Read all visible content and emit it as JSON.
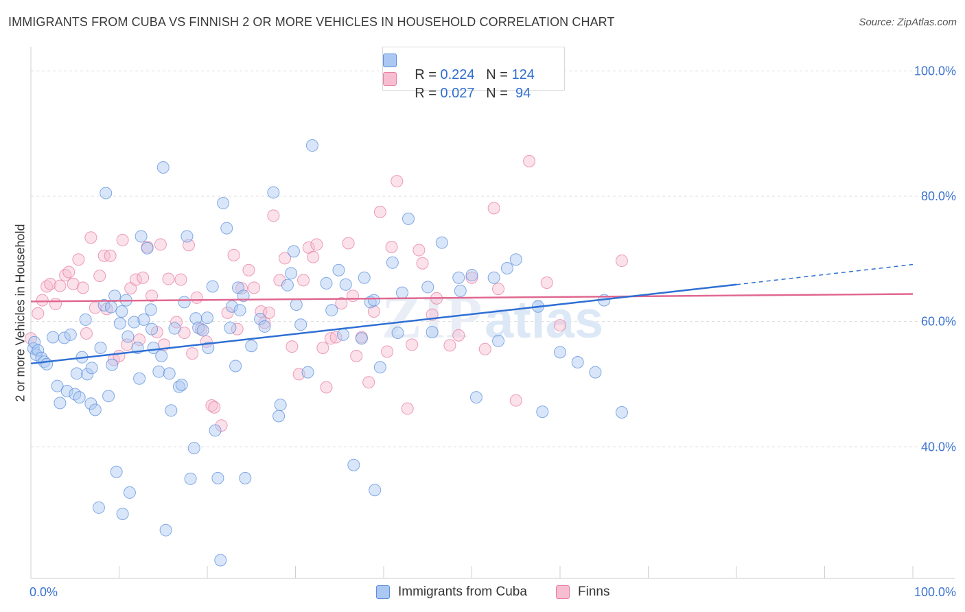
{
  "header": {
    "title": "IMMIGRANTS FROM CUBA VS FINNISH 2 OR MORE VEHICLES IN HOUSEHOLD CORRELATION CHART",
    "source": "Source: ZipAtlas.com"
  },
  "legend": {
    "rows": [
      {
        "r_label": "R = ",
        "r_value": "0.224",
        "n_label": "N = ",
        "n_value": "124",
        "color": "#aac8f2"
      },
      {
        "r_label": "R = ",
        "r_value": "0.027",
        "n_label": "N = ",
        "n_value": " 94",
        "color": "#f7bdd0"
      }
    ]
  },
  "bottom_legend": [
    {
      "label": "Immigrants from Cuba",
      "color": "#aac8f2"
    },
    {
      "label": "Finns",
      "color": "#f7bdd0"
    }
  ],
  "watermark": {
    "zip": "ZIP",
    "atlas": "atlas"
  },
  "chart_data": {
    "type": "scatter",
    "title": "IMMIGRANTS FROM CUBA VS FINNISH 2 OR MORE VEHICLES IN HOUSEHOLD CORRELATION CHART",
    "xlabel": "",
    "ylabel": "2 or more Vehicles in Household",
    "xlim": [
      0,
      100
    ],
    "ylim": [
      19,
      103
    ],
    "x_tick_labels": [
      "0.0%",
      "100.0%"
    ],
    "y_ticks": [
      {
        "value": 100,
        "label": "100.0%"
      },
      {
        "value": 80,
        "label": "80.0%"
      },
      {
        "value": 60,
        "label": "60.0%"
      },
      {
        "value": 40,
        "label": "40.0%"
      }
    ],
    "grid": "horizontal dashed",
    "colors": {
      "cuba": "#5b8fdc",
      "finns": "#e77ea0",
      "cuba_line": "#2e6fd3",
      "finns_line": "#e06790",
      "tick_label": "#3b73d0"
    },
    "series": [
      {
        "name": "Immigrants from Cuba",
        "r": 0.224,
        "n": 124,
        "trend": {
          "x": [
            0,
            80
          ],
          "y": [
            53.3,
            65.9
          ],
          "dashed_extension": {
            "x": [
              80,
              100
            ],
            "y": [
              65.9,
              69.1
            ]
          }
        },
        "points": [
          [
            0.3,
            55.7
          ],
          [
            0.4,
            56.7
          ],
          [
            0.6,
            54.7
          ],
          [
            0.8,
            55.4
          ],
          [
            1.2,
            54.2
          ],
          [
            1.5,
            53.6
          ],
          [
            1.8,
            53.2
          ],
          [
            2.5,
            57.5
          ],
          [
            3.0,
            49.7
          ],
          [
            3.3,
            47.0
          ],
          [
            3.8,
            57.4
          ],
          [
            4.1,
            48.9
          ],
          [
            4.5,
            57.9
          ],
          [
            5.0,
            48.4
          ],
          [
            5.5,
            47.9
          ],
          [
            5.2,
            51.7
          ],
          [
            5.8,
            54.3
          ],
          [
            6.2,
            60.3
          ],
          [
            6.4,
            51.6
          ],
          [
            6.8,
            46.9
          ],
          [
            6.9,
            52.6
          ],
          [
            7.3,
            45.9
          ],
          [
            7.7,
            30.3
          ],
          [
            7.9,
            55.8
          ],
          [
            8.3,
            62.6
          ],
          [
            8.5,
            80.5
          ],
          [
            8.8,
            48.1
          ],
          [
            9.1,
            62.3
          ],
          [
            9.2,
            53.1
          ],
          [
            9.5,
            64.1
          ],
          [
            9.7,
            36.0
          ],
          [
            10.1,
            59.7
          ],
          [
            10.3,
            61.6
          ],
          [
            10.4,
            29.3
          ],
          [
            10.8,
            63.4
          ],
          [
            11.0,
            57.6
          ],
          [
            11.2,
            32.7
          ],
          [
            11.7,
            59.9
          ],
          [
            12.1,
            55.8
          ],
          [
            12.3,
            50.9
          ],
          [
            12.5,
            73.6
          ],
          [
            12.8,
            60.3
          ],
          [
            13.2,
            71.7
          ],
          [
            13.6,
            61.9
          ],
          [
            13.9,
            55.8
          ],
          [
            13.7,
            58.8
          ],
          [
            14.5,
            52.0
          ],
          [
            14.8,
            54.5
          ],
          [
            15.0,
            84.6
          ],
          [
            15.3,
            26.7
          ],
          [
            15.7,
            51.7
          ],
          [
            15.9,
            45.8
          ],
          [
            16.3,
            58.9
          ],
          [
            16.8,
            49.6
          ],
          [
            17.1,
            49.9
          ],
          [
            17.4,
            63.1
          ],
          [
            17.7,
            73.6
          ],
          [
            18.1,
            34.9
          ],
          [
            18.5,
            39.8
          ],
          [
            18.7,
            60.5
          ],
          [
            19.0,
            59.0
          ],
          [
            19.5,
            58.6
          ],
          [
            20.0,
            60.6
          ],
          [
            20.1,
            55.8
          ],
          [
            20.6,
            65.6
          ],
          [
            20.9,
            42.6
          ],
          [
            21.2,
            35.0
          ],
          [
            21.5,
            21.9
          ],
          [
            21.8,
            78.9
          ],
          [
            22.2,
            74.9
          ],
          [
            22.6,
            59.0
          ],
          [
            22.8,
            62.4
          ],
          [
            23.2,
            52.9
          ],
          [
            23.5,
            65.4
          ],
          [
            23.7,
            61.8
          ],
          [
            24.1,
            64.1
          ],
          [
            24.3,
            35.0
          ],
          [
            25.0,
            56.1
          ],
          [
            26.0,
            60.4
          ],
          [
            26.5,
            59.2
          ],
          [
            27.5,
            80.6
          ],
          [
            28.1,
            44.9
          ],
          [
            28.3,
            46.7
          ],
          [
            29.1,
            65.8
          ],
          [
            29.5,
            67.7
          ],
          [
            29.8,
            71.2
          ],
          [
            30.1,
            62.7
          ],
          [
            30.6,
            59.5
          ],
          [
            31.4,
            51.9
          ],
          [
            31.9,
            88.1
          ],
          [
            33.5,
            66.1
          ],
          [
            34.1,
            61.8
          ],
          [
            34.9,
            68.2
          ],
          [
            35.4,
            57.9
          ],
          [
            35.7,
            65.9
          ],
          [
            36.6,
            37.1
          ],
          [
            37.5,
            57.3
          ],
          [
            37.8,
            67.0
          ],
          [
            38.5,
            63.1
          ],
          [
            38.9,
            63.4
          ],
          [
            39.0,
            33.1
          ],
          [
            39.6,
            52.7
          ],
          [
            41.0,
            69.4
          ],
          [
            41.6,
            58.2
          ],
          [
            42.1,
            64.6
          ],
          [
            42.8,
            76.4
          ],
          [
            45.0,
            65.5
          ],
          [
            45.5,
            58.3
          ],
          [
            46.6,
            72.6
          ],
          [
            48.5,
            67.0
          ],
          [
            48.7,
            64.9
          ],
          [
            50.0,
            67.4
          ],
          [
            50.5,
            47.9
          ],
          [
            52.5,
            67.0
          ],
          [
            53.0,
            56.9
          ],
          [
            54.0,
            68.5
          ],
          [
            55.0,
            69.9
          ],
          [
            57.5,
            62.4
          ],
          [
            58.0,
            45.6
          ],
          [
            60.0,
            55.1
          ],
          [
            64.0,
            51.9
          ],
          [
            65.0,
            63.4
          ],
          [
            67.0,
            45.5
          ],
          [
            62.0,
            53.5
          ]
        ]
      },
      {
        "name": "Finns",
        "r": 0.027,
        "n": 94,
        "trend": {
          "x": [
            0,
            100
          ],
          "y": [
            63.2,
            64.4
          ]
        },
        "points": [
          [
            0.0,
            57.3
          ],
          [
            0.8,
            61.3
          ],
          [
            1.3,
            63.4
          ],
          [
            1.8,
            65.6
          ],
          [
            2.2,
            66.0
          ],
          [
            2.8,
            62.8
          ],
          [
            3.3,
            65.7
          ],
          [
            3.9,
            67.4
          ],
          [
            4.3,
            67.9
          ],
          [
            4.8,
            66.0
          ],
          [
            5.4,
            69.9
          ],
          [
            5.9,
            65.4
          ],
          [
            6.3,
            58.1
          ],
          [
            6.8,
            73.4
          ],
          [
            7.3,
            62.2
          ],
          [
            7.8,
            67.3
          ],
          [
            8.3,
            70.5
          ],
          [
            8.6,
            62.0
          ],
          [
            9.0,
            70.5
          ],
          [
            9.4,
            53.9
          ],
          [
            10.0,
            54.5
          ],
          [
            10.4,
            73.0
          ],
          [
            10.9,
            56.3
          ],
          [
            11.3,
            65.3
          ],
          [
            11.9,
            66.7
          ],
          [
            12.3,
            57.1
          ],
          [
            12.7,
            67.0
          ],
          [
            13.2,
            71.9
          ],
          [
            13.7,
            64.1
          ],
          [
            14.3,
            58.3
          ],
          [
            14.7,
            72.3
          ],
          [
            15.1,
            56.3
          ],
          [
            15.6,
            66.8
          ],
          [
            16.5,
            59.9
          ],
          [
            17.0,
            66.7
          ],
          [
            17.4,
            58.2
          ],
          [
            17.9,
            72.2
          ],
          [
            18.3,
            54.9
          ],
          [
            18.8,
            63.8
          ],
          [
            19.3,
            58.8
          ],
          [
            19.9,
            56.8
          ],
          [
            20.5,
            46.6
          ],
          [
            20.8,
            46.3
          ],
          [
            21.6,
            43.4
          ],
          [
            22.3,
            61.4
          ],
          [
            23.0,
            70.6
          ],
          [
            23.4,
            58.8
          ],
          [
            23.9,
            65.3
          ],
          [
            24.7,
            68.2
          ],
          [
            25.3,
            65.4
          ],
          [
            26.1,
            61.6
          ],
          [
            26.5,
            59.8
          ],
          [
            27.0,
            61.4
          ],
          [
            27.5,
            76.9
          ],
          [
            28.2,
            66.6
          ],
          [
            28.8,
            70.1
          ],
          [
            29.6,
            56.0
          ],
          [
            30.4,
            51.6
          ],
          [
            30.9,
            66.6
          ],
          [
            31.5,
            71.8
          ],
          [
            32.0,
            70.3
          ],
          [
            32.4,
            72.3
          ],
          [
            33.1,
            55.8
          ],
          [
            33.5,
            49.5
          ],
          [
            34.0,
            57.3
          ],
          [
            34.6,
            57.5
          ],
          [
            35.2,
            62.9
          ],
          [
            36.0,
            72.5
          ],
          [
            36.5,
            64.1
          ],
          [
            36.9,
            54.5
          ],
          [
            37.5,
            57.5
          ],
          [
            38.3,
            50.3
          ],
          [
            38.9,
            61.6
          ],
          [
            39.6,
            77.5
          ],
          [
            40.4,
            55.2
          ],
          [
            40.9,
            71.9
          ],
          [
            41.5,
            82.4
          ],
          [
            42.7,
            46.1
          ],
          [
            43.2,
            56.3
          ],
          [
            44.0,
            71.4
          ],
          [
            44.4,
            69.3
          ],
          [
            46.0,
            63.7
          ],
          [
            47.5,
            56.2
          ],
          [
            48.5,
            57.8
          ],
          [
            50.0,
            67.0
          ],
          [
            51.5,
            55.6
          ],
          [
            52.5,
            78.1
          ],
          [
            53.0,
            65.2
          ],
          [
            55.0,
            47.4
          ],
          [
            56.5,
            85.6
          ],
          [
            58.5,
            66.2
          ],
          [
            60.0,
            59.4
          ],
          [
            67.0,
            69.7
          ],
          [
            45.5,
            61.1
          ]
        ]
      }
    ]
  }
}
